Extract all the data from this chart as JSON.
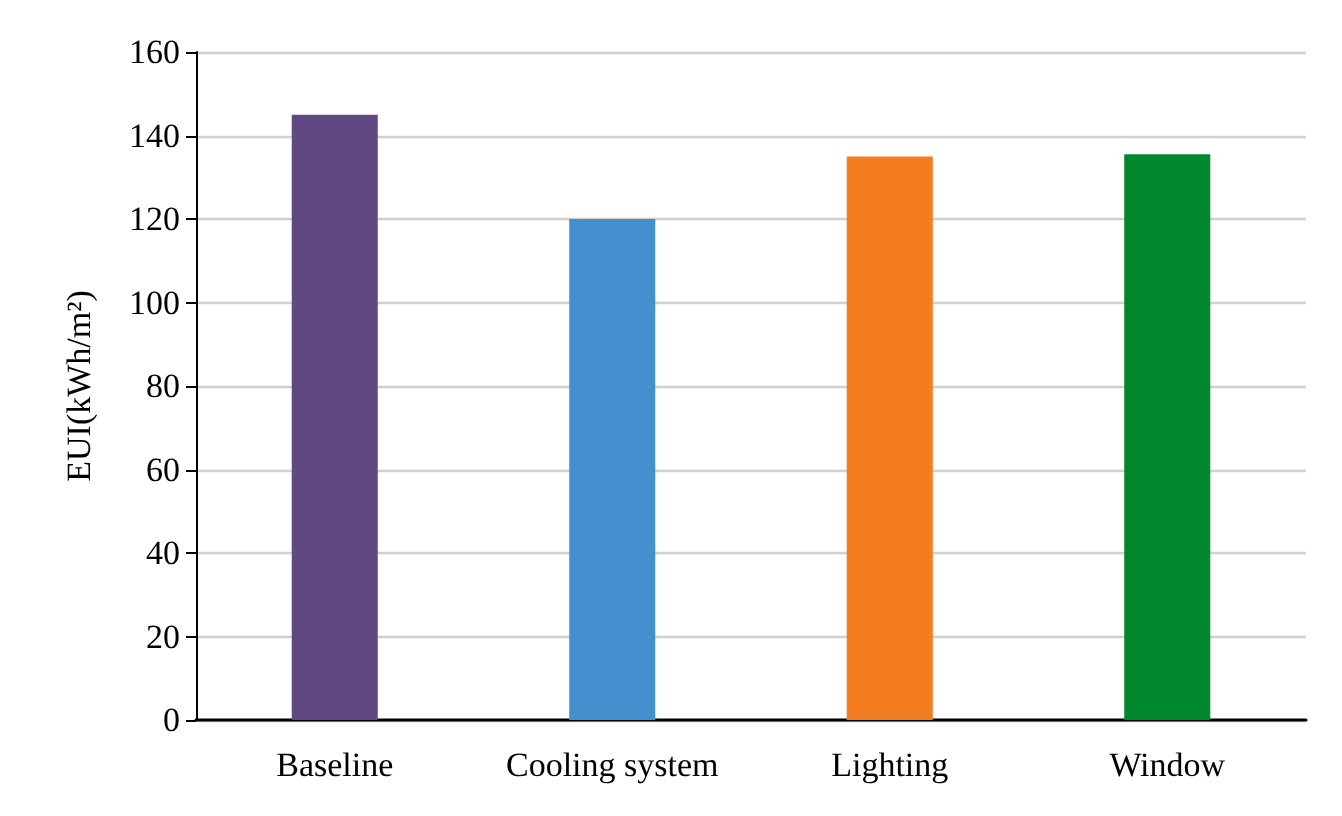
{
  "chart_data": {
    "type": "bar",
    "ylabel": "EUI(kWh/m²)",
    "categories": [
      "Baseline",
      "Cooling system",
      "Lighting",
      "Window"
    ],
    "values": [
      145,
      120,
      135,
      135.5
    ],
    "colors": [
      "#604882",
      "#4490cf",
      "#f47d20",
      "#00892c"
    ],
    "ylim": [
      0,
      160
    ],
    "yticks": [
      0,
      20,
      40,
      60,
      80,
      100,
      120,
      140,
      160
    ],
    "grid": "y"
  }
}
